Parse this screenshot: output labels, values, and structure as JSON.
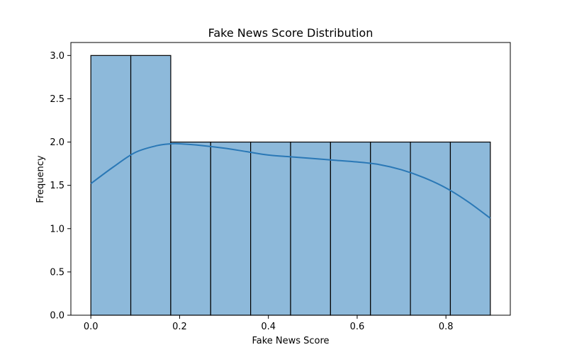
{
  "chart_data": {
    "type": "bar",
    "title": "Fake News Score Distribution",
    "xlabel": "Fake News Score",
    "ylabel": "Frequency",
    "xlim": [
      -0.045,
      0.945
    ],
    "ylim": [
      0,
      3.15
    ],
    "x_ticks": [
      0.0,
      0.2,
      0.4,
      0.6,
      0.8
    ],
    "x_tick_labels": [
      "0.0",
      "0.2",
      "0.4",
      "0.6",
      "0.8"
    ],
    "y_ticks": [
      0.0,
      0.5,
      1.0,
      1.5,
      2.0,
      2.5,
      3.0
    ],
    "y_tick_labels": [
      "0.0",
      "0.5",
      "1.0",
      "1.5",
      "2.0",
      "2.5",
      "3.0"
    ],
    "grid": false,
    "bins": [
      {
        "start": 0.0,
        "end": 0.09,
        "count": 3
      },
      {
        "start": 0.09,
        "end": 0.18,
        "count": 3
      },
      {
        "start": 0.18,
        "end": 0.27,
        "count": 2
      },
      {
        "start": 0.27,
        "end": 0.36,
        "count": 2
      },
      {
        "start": 0.36,
        "end": 0.45,
        "count": 2
      },
      {
        "start": 0.45,
        "end": 0.54,
        "count": 2
      },
      {
        "start": 0.54,
        "end": 0.63,
        "count": 2
      },
      {
        "start": 0.63,
        "end": 0.72,
        "count": 2
      },
      {
        "start": 0.72,
        "end": 0.81,
        "count": 2
      },
      {
        "start": 0.81,
        "end": 0.9,
        "count": 2
      }
    ],
    "kde_curve": {
      "x": [
        0.0,
        0.05,
        0.1,
        0.15,
        0.18,
        0.2,
        0.25,
        0.3,
        0.35,
        0.4,
        0.45,
        0.5,
        0.55,
        0.6,
        0.65,
        0.7,
        0.75,
        0.8,
        0.85,
        0.9
      ],
      "y": [
        1.52,
        1.71,
        1.88,
        1.96,
        1.98,
        1.98,
        1.96,
        1.93,
        1.89,
        1.85,
        1.83,
        1.81,
        1.79,
        1.77,
        1.74,
        1.68,
        1.59,
        1.47,
        1.31,
        1.12
      ]
    },
    "colors": {
      "bar_fill": "#8db9da",
      "bar_edge": "#000000",
      "kde_line": "#2a78b6"
    }
  }
}
